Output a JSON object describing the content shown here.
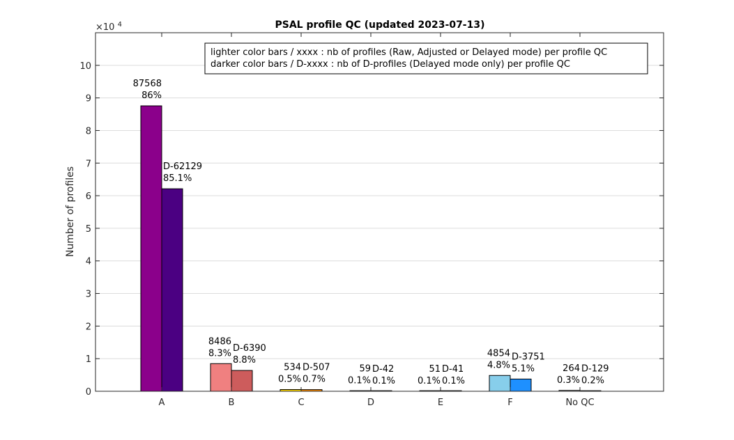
{
  "chart_data": {
    "type": "bar",
    "title": "PSAL profile QC (updated 2023-07-13)",
    "xlabel": "",
    "ylabel": "Number of profiles",
    "y_exponent_label": "×10",
    "y_exponent_power": "4",
    "ylim": [
      0,
      110000
    ],
    "grid": true,
    "legend_position": "top-right",
    "categories": [
      "A",
      "B",
      "C",
      "D",
      "E",
      "F",
      "No QC"
    ],
    "y_tick_values": [
      0,
      10000,
      20000,
      30000,
      40000,
      50000,
      60000,
      70000,
      80000,
      90000,
      100000
    ],
    "y_tick_labels": [
      "0",
      "1",
      "2",
      "3",
      "4",
      "5",
      "6",
      "7",
      "8",
      "9",
      "10"
    ],
    "annotation_lines": [
      "lighter color bars / xxxx : nb of profiles (Raw, Adjusted or Delayed mode) per profile QC",
      "darker color bars / D-xxxx : nb of D-profiles (Delayed mode only) per profile QC"
    ],
    "series": [
      {
        "values": [
          87568,
          8486,
          534,
          59,
          51,
          4854,
          264
        ],
        "count_labels": [
          "87568",
          "8486",
          "534",
          "59",
          "51",
          "4854",
          "264"
        ],
        "percent_labels": [
          "86%",
          "8.3%",
          "0.5%",
          "0.1%",
          "0.1%",
          "4.8%",
          "0.3%"
        ],
        "colors": [
          "#8b008b",
          "#f08080",
          "#ffd700",
          "#ffffff",
          "#ffffff",
          "#87ceeb",
          "#ffffff"
        ]
      },
      {
        "values": [
          62129,
          6390,
          507,
          42,
          41,
          3751,
          129
        ],
        "count_labels": [
          "D-62129",
          "D-6390",
          "D-507",
          "D-42",
          "D-41",
          "D-3751",
          "D-129"
        ],
        "percent_labels": [
          "85.1%",
          "8.8%",
          "0.7%",
          "0.1%",
          "0.1%",
          "5.1%",
          "0.2%"
        ],
        "colors": [
          "#4b0082",
          "#cd5c5c",
          "#ff8c00",
          "#ffffff",
          "#ffffff",
          "#1e90ff",
          "#ffffff"
        ]
      }
    ]
  }
}
